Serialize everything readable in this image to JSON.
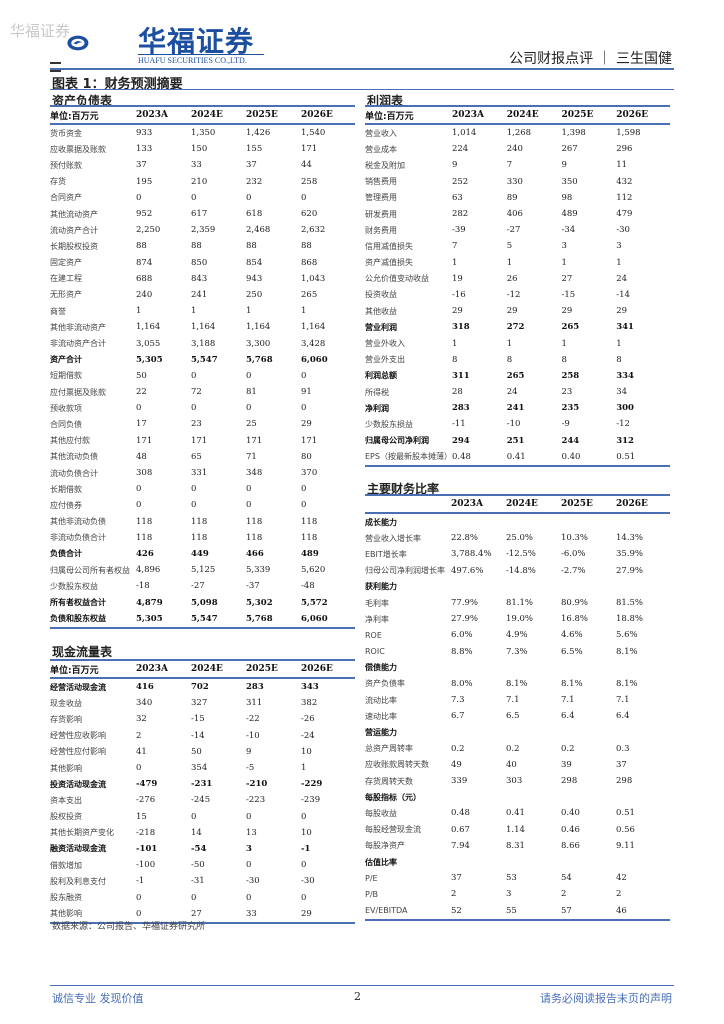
{
  "watermark": "华福证券",
  "logo": {
    "cn": "华福证券",
    "en": "HUAFU SECURITIES CO.,LTD."
  },
  "header": {
    "report_type": "公司财报点评 ｜ 三生国健"
  },
  "figure_title": "图表 1：财务预测摘要",
  "years": [
    "2023A",
    "2024E",
    "2025E",
    "2026E"
  ],
  "balance_sheet": {
    "title": "资产负债表",
    "unit": "单位:百万元",
    "rows": [
      {
        "label": "货币资金",
        "values": [
          "933",
          "1,350",
          "1,426",
          "1,540"
        ]
      },
      {
        "label": "应收票据及账款",
        "values": [
          "133",
          "150",
          "155",
          "171"
        ]
      },
      {
        "label": "预付账款",
        "values": [
          "37",
          "33",
          "37",
          "44"
        ]
      },
      {
        "label": "存货",
        "values": [
          "195",
          "210",
          "232",
          "258"
        ]
      },
      {
        "label": "合同资产",
        "values": [
          "0",
          "0",
          "0",
          "0"
        ]
      },
      {
        "label": "其他流动资产",
        "values": [
          "952",
          "617",
          "618",
          "620"
        ]
      },
      {
        "label": "流动资产合计",
        "values": [
          "2,250",
          "2,359",
          "2,468",
          "2,632"
        ]
      },
      {
        "label": "长期股权投资",
        "values": [
          "88",
          "88",
          "88",
          "88"
        ]
      },
      {
        "label": "固定资产",
        "values": [
          "874",
          "850",
          "854",
          "868"
        ]
      },
      {
        "label": "在建工程",
        "values": [
          "688",
          "843",
          "943",
          "1,043"
        ]
      },
      {
        "label": "无形资产",
        "values": [
          "240",
          "241",
          "250",
          "265"
        ]
      },
      {
        "label": "商誉",
        "values": [
          "1",
          "1",
          "1",
          "1"
        ]
      },
      {
        "label": "其他非流动资产",
        "values": [
          "1,164",
          "1,164",
          "1,164",
          "1,164"
        ]
      },
      {
        "label": "非流动资产合计",
        "values": [
          "3,055",
          "3,188",
          "3,300",
          "3,428"
        ]
      },
      {
        "label": "资产合计",
        "values": [
          "5,305",
          "5,547",
          "5,768",
          "6,060"
        ],
        "bold": true
      },
      {
        "label": "短期借款",
        "values": [
          "50",
          "0",
          "0",
          "0"
        ]
      },
      {
        "label": "应付票据及账款",
        "values": [
          "22",
          "72",
          "81",
          "91"
        ]
      },
      {
        "label": "预收款项",
        "values": [
          "0",
          "0",
          "0",
          "0"
        ]
      },
      {
        "label": "合同负债",
        "values": [
          "17",
          "23",
          "25",
          "29"
        ]
      },
      {
        "label": "其他应付款",
        "values": [
          "171",
          "171",
          "171",
          "171"
        ]
      },
      {
        "label": "其他流动负债",
        "values": [
          "48",
          "65",
          "71",
          "80"
        ]
      },
      {
        "label": "流动负债合计",
        "values": [
          "308",
          "331",
          "348",
          "370"
        ]
      },
      {
        "label": "长期借款",
        "values": [
          "0",
          "0",
          "0",
          "0"
        ]
      },
      {
        "label": "应付债券",
        "values": [
          "0",
          "0",
          "0",
          "0"
        ]
      },
      {
        "label": "其他非流动负债",
        "values": [
          "118",
          "118",
          "118",
          "118"
        ]
      },
      {
        "label": "非流动负债合计",
        "values": [
          "118",
          "118",
          "118",
          "118"
        ]
      },
      {
        "label": "负债合计",
        "values": [
          "426",
          "449",
          "466",
          "489"
        ],
        "bold": true
      },
      {
        "label": "归属母公司所有者权益",
        "values": [
          "4,896",
          "5,125",
          "5,339",
          "5,620"
        ]
      },
      {
        "label": "少数股东权益",
        "values": [
          "-18",
          "-27",
          "-37",
          "-48"
        ]
      },
      {
        "label": "所有者权益合计",
        "values": [
          "4,879",
          "5,098",
          "5,302",
          "5,572"
        ],
        "bold": true
      },
      {
        "label": "负债和股东权益",
        "values": [
          "5,305",
          "5,547",
          "5,768",
          "6,060"
        ],
        "bold": true
      }
    ]
  },
  "income_statement": {
    "title": "利润表",
    "unit": "单位:百万元",
    "rows": [
      {
        "label": "营业收入",
        "values": [
          "1,014",
          "1,268",
          "1,398",
          "1,598"
        ]
      },
      {
        "label": "营业成本",
        "values": [
          "224",
          "240",
          "267",
          "296"
        ]
      },
      {
        "label": "税金及附加",
        "values": [
          "9",
          "7",
          "9",
          "11"
        ]
      },
      {
        "label": "销售费用",
        "values": [
          "252",
          "330",
          "350",
          "432"
        ]
      },
      {
        "label": "管理费用",
        "values": [
          "63",
          "89",
          "98",
          "112"
        ]
      },
      {
        "label": "研发费用",
        "values": [
          "282",
          "406",
          "489",
          "479"
        ]
      },
      {
        "label": "财务费用",
        "values": [
          "-39",
          "-27",
          "-34",
          "-30"
        ]
      },
      {
        "label": "信用减值损失",
        "values": [
          "7",
          "5",
          "3",
          "3"
        ]
      },
      {
        "label": "资产减值损失",
        "values": [
          "1",
          "1",
          "1",
          "1"
        ]
      },
      {
        "label": "公允价值变动收益",
        "values": [
          "19",
          "26",
          "27",
          "24"
        ]
      },
      {
        "label": "投资收益",
        "values": [
          "-16",
          "-12",
          "-15",
          "-14"
        ]
      },
      {
        "label": "其他收益",
        "values": [
          "29",
          "29",
          "29",
          "29"
        ]
      },
      {
        "label": "营业利润",
        "values": [
          "318",
          "272",
          "265",
          "341"
        ],
        "bold": true
      },
      {
        "label": "营业外收入",
        "values": [
          "1",
          "1",
          "1",
          "1"
        ]
      },
      {
        "label": "营业外支出",
        "values": [
          "8",
          "8",
          "8",
          "8"
        ]
      },
      {
        "label": "利润总额",
        "values": [
          "311",
          "265",
          "258",
          "334"
        ],
        "bold": true
      },
      {
        "label": "所得税",
        "values": [
          "28",
          "24",
          "23",
          "34"
        ]
      },
      {
        "label": "净利润",
        "values": [
          "283",
          "241",
          "235",
          "300"
        ],
        "bold": true
      },
      {
        "label": "少数股东损益",
        "values": [
          "-11",
          "-10",
          "-9",
          "-12"
        ]
      },
      {
        "label": "归属母公司净利润",
        "values": [
          "294",
          "251",
          "244",
          "312"
        ],
        "bold": true
      },
      {
        "label": "EPS（按最新股本摊薄）",
        "values": [
          "0.48",
          "0.41",
          "0.40",
          "0.51"
        ]
      }
    ]
  },
  "ratios": {
    "title": "主要财务比率",
    "unit": "",
    "rows": [
      {
        "label": "成长能力",
        "values": [
          "",
          "",
          "",
          ""
        ],
        "bold": true
      },
      {
        "label": "营业收入增长率",
        "values": [
          "22.8%",
          "25.0%",
          "10.3%",
          "14.3%"
        ]
      },
      {
        "label": "EBIT增长率",
        "values": [
          "3,788.4%",
          "-12.5%",
          "-6.0%",
          "35.9%"
        ]
      },
      {
        "label": "归母公司净利润增长率",
        "values": [
          "497.6%",
          "-14.8%",
          "-2.7%",
          "27.9%"
        ]
      },
      {
        "label": "获利能力",
        "values": [
          "",
          "",
          "",
          ""
        ],
        "bold": true
      },
      {
        "label": "毛利率",
        "values": [
          "77.9%",
          "81.1%",
          "80.9%",
          "81.5%"
        ]
      },
      {
        "label": "净利率",
        "values": [
          "27.9%",
          "19.0%",
          "16.8%",
          "18.8%"
        ]
      },
      {
        "label": "ROE",
        "values": [
          "6.0%",
          "4.9%",
          "4.6%",
          "5.6%"
        ]
      },
      {
        "label": "ROIC",
        "values": [
          "8.8%",
          "7.3%",
          "6.5%",
          "8.1%"
        ]
      },
      {
        "label": "偿债能力",
        "values": [
          "",
          "",
          "",
          ""
        ],
        "bold": true
      },
      {
        "label": "资产负债率",
        "values": [
          "8.0%",
          "8.1%",
          "8.1%",
          "8.1%"
        ]
      },
      {
        "label": "流动比率",
        "values": [
          "7.3",
          "7.1",
          "7.1",
          "7.1"
        ]
      },
      {
        "label": "速动比率",
        "values": [
          "6.7",
          "6.5",
          "6.4",
          "6.4"
        ]
      },
      {
        "label": "营运能力",
        "values": [
          "",
          "",
          "",
          ""
        ],
        "bold": true
      },
      {
        "label": "总资产周转率",
        "values": [
          "0.2",
          "0.2",
          "0.2",
          "0.3"
        ]
      },
      {
        "label": "应收账款周转天数",
        "values": [
          "49",
          "40",
          "39",
          "37"
        ]
      },
      {
        "label": "存货周转天数",
        "values": [
          "339",
          "303",
          "298",
          "298"
        ]
      },
      {
        "label": "每股指标（元）",
        "values": [
          "",
          "",
          "",
          ""
        ],
        "bold": true
      },
      {
        "label": "每股收益",
        "values": [
          "0.48",
          "0.41",
          "0.40",
          "0.51"
        ]
      },
      {
        "label": "每股经营现金流",
        "values": [
          "0.67",
          "1.14",
          "0.46",
          "0.56"
        ]
      },
      {
        "label": "每股净资产",
        "values": [
          "7.94",
          "8.31",
          "8.66",
          "9.11"
        ]
      },
      {
        "label": "估值比率",
        "values": [
          "",
          "",
          "",
          ""
        ],
        "bold": true
      },
      {
        "label": "P/E",
        "values": [
          "37",
          "53",
          "54",
          "42"
        ]
      },
      {
        "label": "P/B",
        "values": [
          "2",
          "3",
          "2",
          "2"
        ]
      },
      {
        "label": "EV/EBITDA",
        "values": [
          "52",
          "55",
          "57",
          "46"
        ]
      }
    ]
  },
  "cash_flow": {
    "title": "现金流量表",
    "unit": "单位:百万元",
    "rows": [
      {
        "label": "经营活动现金流",
        "values": [
          "416",
          "702",
          "283",
          "343"
        ],
        "bold": true
      },
      {
        "label": "现金收益",
        "values": [
          "340",
          "327",
          "311",
          "382"
        ]
      },
      {
        "label": "存货影响",
        "values": [
          "32",
          "-15",
          "-22",
          "-26"
        ]
      },
      {
        "label": "经营性应收影响",
        "values": [
          "2",
          "-14",
          "-10",
          "-24"
        ]
      },
      {
        "label": "经营性应付影响",
        "values": [
          "41",
          "50",
          "9",
          "10"
        ]
      },
      {
        "label": "其他影响",
        "values": [
          "0",
          "354",
          "-5",
          "1"
        ]
      },
      {
        "label": "投资活动现金流",
        "values": [
          "-479",
          "-231",
          "-210",
          "-229"
        ],
        "bold": true
      },
      {
        "label": "资本支出",
        "values": [
          "-276",
          "-245",
          "-223",
          "-239"
        ]
      },
      {
        "label": "股权投资",
        "values": [
          "15",
          "0",
          "0",
          "0"
        ]
      },
      {
        "label": "其他长期资产变化",
        "values": [
          "-218",
          "14",
          "13",
          "10"
        ]
      },
      {
        "label": "融资活动现金流",
        "values": [
          "-101",
          "-54",
          "3",
          "-1"
        ],
        "bold": true
      },
      {
        "label": "借款增加",
        "values": [
          "-100",
          "-50",
          "0",
          "0"
        ]
      },
      {
        "label": "股利及利息支付",
        "values": [
          "-1",
          "-31",
          "-30",
          "-30"
        ]
      },
      {
        "label": "股东融资",
        "values": [
          "0",
          "0",
          "0",
          "0"
        ]
      },
      {
        "label": "其他影响",
        "values": [
          "0",
          "27",
          "33",
          "29"
        ]
      }
    ]
  },
  "source": "数据来源：公司报告、华福证券研究所",
  "footer": {
    "left": "诚信专业  发现价值",
    "page": "2",
    "right": "请务必阅读报告末页的声明"
  },
  "colors": {
    "accent": "#4a6fb5",
    "brand": "#1d4fa0"
  }
}
